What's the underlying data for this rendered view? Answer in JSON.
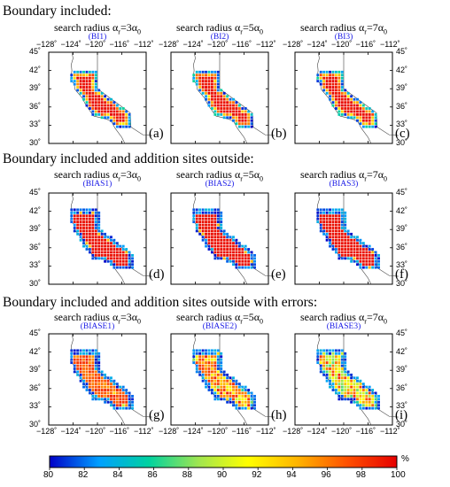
{
  "sections": [
    {
      "title": "Boundary included:"
    },
    {
      "title": "Boundary included and addition sites outside:"
    },
    {
      "title": "Boundary included and addition sites outside with errors:"
    }
  ],
  "column_heads": [
    {
      "sub": "search radius",
      "alpha": "α",
      "r": "r",
      "eq": "=3α",
      "zero": "0"
    },
    {
      "sub": "search radius",
      "alpha": "α",
      "r": "r",
      "eq": "=5α",
      "zero": "0"
    },
    {
      "sub": "search radius",
      "alpha": "α",
      "r": "r",
      "eq": "=7α",
      "zero": "0"
    }
  ],
  "panels": [
    {
      "code": "(BI1)",
      "label": "(a)"
    },
    {
      "code": "(BI2)",
      "label": "(b)"
    },
    {
      "code": "(BI3)",
      "label": "(c)"
    },
    {
      "code": "(BIAS1)",
      "label": "(d)"
    },
    {
      "code": "(BIAS2)",
      "label": "(e)"
    },
    {
      "code": "(BIAS3)",
      "label": "(f)"
    },
    {
      "code": "(BIASE1)",
      "label": "(g)"
    },
    {
      "code": "(BIASE2)",
      "label": "(h)"
    },
    {
      "code": "(BIASE3)",
      "label": "(i)"
    }
  ],
  "chart_data": {
    "type": "heatmap",
    "x_ticks": [
      "−128˚",
      "−124˚",
      "−120˚",
      "−116˚",
      "−112˚"
    ],
    "y_ticks": [
      "45˚",
      "42˚",
      "39˚",
      "36˚",
      "33˚",
      "30˚"
    ],
    "xlim": [
      -128,
      -112
    ],
    "ylim": [
      30,
      45
    ],
    "colorbar": {
      "min": 80,
      "max": 100,
      "unit": "%",
      "ticks": [
        "80",
        "82",
        "84",
        "86",
        "88",
        "90",
        "92",
        "94",
        "96",
        "98",
        "100"
      ],
      "colors": [
        "#0000c8",
        "#00a0ff",
        "#00d2a0",
        "#a0e650",
        "#ffff00",
        "#ffb400",
        "#ff5000",
        "#e60000"
      ]
    }
  }
}
